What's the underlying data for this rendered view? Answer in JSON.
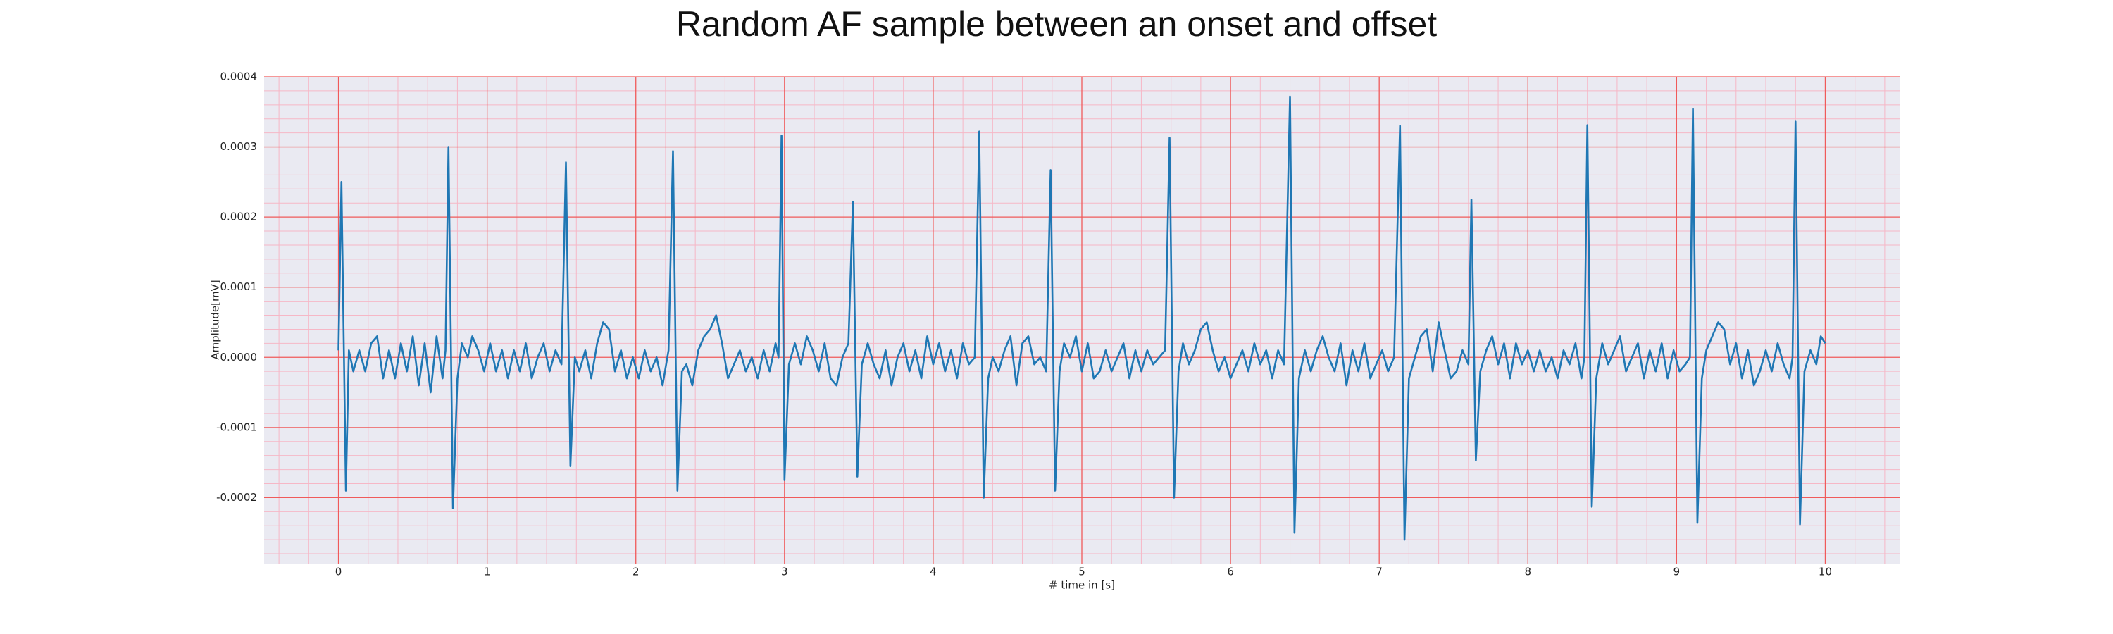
{
  "chart_data": {
    "type": "line",
    "title": "Random AF sample between an onset and offset",
    "xlabel": "# time in [s]",
    "ylabel": "Amplitude[mV]",
    "color": "#1f77b4",
    "grid": true,
    "minor_grid": true,
    "xlim": [
      -0.5,
      10.5
    ],
    "ylim": [
      -0.000294,
      0.0004
    ],
    "xticks": [
      0,
      1,
      2,
      3,
      4,
      5,
      6,
      7,
      8,
      9,
      10
    ],
    "yticks": [
      -0.0002,
      -0.0001,
      {
        "value": 0,
        "label": "0.0000"
      },
      0.0001,
      0.0002,
      0.0003,
      0.0004
    ],
    "x": [
      0,
      0.02,
      0.05,
      0.07,
      0.1,
      0.14,
      0.18,
      0.22,
      0.26,
      0.3,
      0.34,
      0.38,
      0.42,
      0.46,
      0.5,
      0.54,
      0.58,
      0.62,
      0.66,
      0.7,
      0.72,
      0.74,
      0.77,
      0.8,
      0.83,
      0.87,
      0.9,
      0.94,
      0.98,
      1.02,
      1.06,
      1.1,
      1.14,
      1.18,
      1.22,
      1.26,
      1.3,
      1.34,
      1.38,
      1.42,
      1.46,
      1.5,
      1.53,
      1.56,
      1.59,
      1.62,
      1.66,
      1.7,
      1.74,
      1.78,
      1.82,
      1.86,
      1.9,
      1.94,
      1.98,
      2.02,
      2.06,
      2.1,
      2.14,
      2.18,
      2.22,
      2.25,
      2.28,
      2.31,
      2.34,
      2.38,
      2.42,
      2.46,
      2.5,
      2.54,
      2.58,
      2.62,
      2.66,
      2.7,
      2.74,
      2.78,
      2.82,
      2.86,
      2.9,
      2.94,
      2.96,
      2.98,
      3.0,
      3.03,
      3.07,
      3.11,
      3.15,
      3.19,
      3.23,
      3.27,
      3.31,
      3.35,
      3.39,
      3.43,
      3.46,
      3.49,
      3.52,
      3.56,
      3.6,
      3.64,
      3.68,
      3.72,
      3.76,
      3.8,
      3.84,
      3.88,
      3.92,
      3.96,
      4.0,
      4.04,
      4.08,
      4.12,
      4.16,
      4.2,
      4.24,
      4.28,
      4.31,
      4.34,
      4.37,
      4.4,
      4.44,
      4.48,
      4.52,
      4.56,
      4.6,
      4.64,
      4.68,
      4.72,
      4.76,
      4.79,
      4.82,
      4.85,
      4.88,
      4.92,
      4.96,
      5.0,
      5.04,
      5.08,
      5.12,
      5.16,
      5.2,
      5.24,
      5.28,
      5.32,
      5.36,
      5.4,
      5.44,
      5.48,
      5.52,
      5.56,
      5.59,
      5.62,
      5.65,
      5.68,
      5.72,
      5.76,
      5.8,
      5.84,
      5.88,
      5.92,
      5.96,
      6.0,
      6.04,
      6.08,
      6.12,
      6.16,
      6.2,
      6.24,
      6.28,
      6.32,
      6.36,
      6.4,
      6.43,
      6.46,
      6.5,
      6.54,
      6.58,
      6.62,
      6.66,
      6.7,
      6.74,
      6.78,
      6.82,
      6.86,
      6.9,
      6.94,
      6.98,
      7.02,
      7.06,
      7.1,
      7.14,
      7.17,
      7.2,
      7.24,
      7.28,
      7.32,
      7.36,
      7.4,
      7.44,
      7.48,
      7.52,
      7.56,
      7.6,
      7.62,
      7.65,
      7.68,
      7.72,
      7.76,
      7.8,
      7.84,
      7.88,
      7.92,
      7.96,
      8.0,
      8.04,
      8.08,
      8.12,
      8.16,
      8.2,
      8.24,
      8.28,
      8.32,
      8.36,
      8.38,
      8.4,
      8.43,
      8.46,
      8.5,
      8.54,
      8.58,
      8.62,
      8.66,
      8.7,
      8.74,
      8.78,
      8.82,
      8.86,
      8.9,
      8.94,
      8.98,
      9.02,
      9.06,
      9.09,
      9.11,
      9.14,
      9.17,
      9.2,
      9.24,
      9.28,
      9.32,
      9.36,
      9.4,
      9.44,
      9.48,
      9.52,
      9.56,
      9.6,
      9.64,
      9.68,
      9.72,
      9.76,
      9.78,
      9.8,
      9.83,
      9.86,
      9.9,
      9.94,
      9.97,
      10.0
    ],
    "values": [
      1e-05,
      0.00025,
      -0.00019,
      1e-05,
      -2e-05,
      1e-05,
      -2e-05,
      2e-05,
      3e-05,
      -3e-05,
      1e-05,
      -3e-05,
      2e-05,
      -2e-05,
      3e-05,
      -4e-05,
      2e-05,
      -5e-05,
      3e-05,
      -3e-05,
      1e-05,
      0.0003,
      -0.000215,
      -3e-05,
      2e-05,
      0,
      3e-05,
      1e-05,
      -2e-05,
      2e-05,
      -2e-05,
      1e-05,
      -3e-05,
      1e-05,
      -2e-05,
      2e-05,
      -3e-05,
      0,
      2e-05,
      -2e-05,
      1e-05,
      -1e-05,
      0.000278,
      -0.000155,
      0,
      -2e-05,
      1e-05,
      -3e-05,
      2e-05,
      5e-05,
      4e-05,
      -2e-05,
      1e-05,
      -3e-05,
      0,
      -3e-05,
      1e-05,
      -2e-05,
      0,
      -4e-05,
      1e-05,
      0.000294,
      -0.00019,
      -2e-05,
      -1e-05,
      -4e-05,
      1e-05,
      3e-05,
      4e-05,
      6e-05,
      2e-05,
      -3e-05,
      -1e-05,
      1e-05,
      -2e-05,
      0,
      -3e-05,
      1e-05,
      -2e-05,
      2e-05,
      0,
      0.000316,
      -0.000175,
      -1e-05,
      2e-05,
      -1e-05,
      3e-05,
      1e-05,
      -2e-05,
      2e-05,
      -3e-05,
      -4e-05,
      0,
      2e-05,
      0.000222,
      -0.00017,
      -1e-05,
      2e-05,
      -1e-05,
      -3e-05,
      1e-05,
      -4e-05,
      0,
      2e-05,
      -2e-05,
      1e-05,
      -3e-05,
      3e-05,
      -1e-05,
      2e-05,
      -2e-05,
      1e-05,
      -3e-05,
      2e-05,
      -1e-05,
      0,
      0.000322,
      -0.0002,
      -3e-05,
      0,
      -2e-05,
      1e-05,
      3e-05,
      -4e-05,
      2e-05,
      3e-05,
      -1e-05,
      0,
      -2e-05,
      0.000267,
      -0.00019,
      -2e-05,
      2e-05,
      0,
      3e-05,
      -2e-05,
      2e-05,
      -3e-05,
      -2e-05,
      1e-05,
      -2e-05,
      0,
      2e-05,
      -3e-05,
      1e-05,
      -2e-05,
      1e-05,
      -1e-05,
      0,
      1e-05,
      0.000313,
      -0.0002,
      -2e-05,
      2e-05,
      -1e-05,
      1e-05,
      4e-05,
      5e-05,
      1e-05,
      -2e-05,
      0,
      -3e-05,
      -1e-05,
      1e-05,
      -2e-05,
      2e-05,
      -1e-05,
      1e-05,
      -3e-05,
      1e-05,
      -1e-05,
      0.000372,
      -0.00025,
      -3e-05,
      1e-05,
      -2e-05,
      1e-05,
      3e-05,
      0,
      -2e-05,
      2e-05,
      -4e-05,
      1e-05,
      -2e-05,
      2e-05,
      -3e-05,
      -1e-05,
      1e-05,
      -2e-05,
      0,
      0.00033,
      -0.00026,
      -3e-05,
      0,
      3e-05,
      4e-05,
      -2e-05,
      5e-05,
      1e-05,
      -3e-05,
      -2e-05,
      1e-05,
      -1e-05,
      0.000225,
      -0.000147,
      -2e-05,
      1e-05,
      3e-05,
      -1e-05,
      2e-05,
      -3e-05,
      2e-05,
      -1e-05,
      1e-05,
      -2e-05,
      1e-05,
      -2e-05,
      0,
      -3e-05,
      1e-05,
      -1e-05,
      2e-05,
      -3e-05,
      0,
      0.000331,
      -0.000213,
      -3e-05,
      2e-05,
      -1e-05,
      1e-05,
      3e-05,
      -2e-05,
      0,
      2e-05,
      -3e-05,
      1e-05,
      -2e-05,
      2e-05,
      -3e-05,
      1e-05,
      -2e-05,
      -1e-05,
      0,
      0.000354,
      -0.000236,
      -3e-05,
      1e-05,
      3e-05,
      5e-05,
      4e-05,
      -1e-05,
      2e-05,
      -3e-05,
      1e-05,
      -4e-05,
      -2e-05,
      1e-05,
      -2e-05,
      2e-05,
      -1e-05,
      -3e-05,
      0,
      0.000336,
      -0.000238,
      -2e-05,
      1e-05,
      -1e-05,
      3e-05,
      2e-05
    ]
  }
}
